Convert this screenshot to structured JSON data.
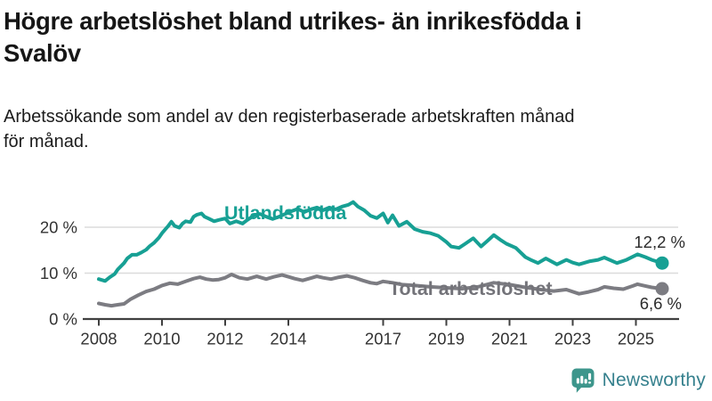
{
  "header": {
    "title": "Högre arbetslöshet bland utrikes- än inrikesfödda i\nSvalöv",
    "subtitle": "Arbetssökande som andel av den registerbaserade arbetskraften månad\nför månad."
  },
  "branding": {
    "name": "Newsworthy",
    "icon": "newsworthy-speech-bubble-bar-chart-icon",
    "icon_color": "#3d968c",
    "text_color": "#35808d"
  },
  "colors": {
    "accent_teal": "#17a094",
    "line_gray": "#7c7c82",
    "grid": "#dbdbdb",
    "axis": "#404040",
    "axis_text": "#333333",
    "value_label_text": "#2b2b2b"
  },
  "chart_data": {
    "type": "line",
    "unit": "%",
    "grid": "horizontal-only",
    "x_axis": {
      "ticks": [
        {
          "v": 2008,
          "label": "2008"
        },
        {
          "v": 2010,
          "label": "2010"
        },
        {
          "v": 2012,
          "label": "2012"
        },
        {
          "v": 2014,
          "label": "2014"
        },
        {
          "v": 2017,
          "label": "2017"
        },
        {
          "v": 2019,
          "label": "2019"
        },
        {
          "v": 2021,
          "label": "2021"
        },
        {
          "v": 2023,
          "label": "2023"
        },
        {
          "v": 2025,
          "label": "2025"
        }
      ],
      "range": [
        2007.5,
        2026.3
      ]
    },
    "y_axis": {
      "ticks": [
        {
          "v": 0,
          "label": "0 %"
        },
        {
          "v": 10,
          "label": "10 %"
        },
        {
          "v": 20,
          "label": "20 %"
        }
      ],
      "range": [
        0,
        26
      ]
    },
    "series": [
      {
        "name": "Utlandsfödda",
        "color": "#17a094",
        "end_value": 12.2,
        "end_label": {
          "text": "12,2 %",
          "x": 770,
          "y": 73
        },
        "label_pos": {
          "x": 252,
          "y": 41
        },
        "x": [
          2008.0,
          2008.2,
          2008.35,
          2008.5,
          2008.6,
          2008.8,
          2008.9,
          2009.05,
          2009.2,
          2009.35,
          2009.5,
          2009.6,
          2009.75,
          2009.9,
          2010.0,
          2010.2,
          2010.3,
          2010.4,
          2010.55,
          2010.65,
          2010.75,
          2010.9,
          2011.0,
          2011.1,
          2011.25,
          2011.35,
          2011.5,
          2011.65,
          2011.8,
          2012.0,
          2012.15,
          2012.35,
          2012.55,
          2012.7,
          2012.9,
          2013.1,
          2013.3,
          2013.5,
          2013.7,
          2013.9,
          2014.1,
          2014.3,
          2014.5,
          2014.7,
          2014.9,
          2015.1,
          2015.3,
          2015.5,
          2015.7,
          2015.9,
          2016.05,
          2016.2,
          2016.4,
          2016.6,
          2016.8,
          2017.0,
          2017.15,
          2017.3,
          2017.5,
          2017.75,
          2018.0,
          2018.25,
          2018.5,
          2018.75,
          2019.0,
          2019.15,
          2019.4,
          2019.6,
          2019.85,
          2020.1,
          2020.3,
          2020.5,
          2020.7,
          2020.9,
          2021.2,
          2021.5,
          2021.7,
          2021.9,
          2022.15,
          2022.5,
          2022.8,
          2023.0,
          2023.2,
          2023.55,
          2023.8,
          2024.0,
          2024.4,
          2024.7,
          2025.05,
          2025.3,
          2025.5,
          2025.83
        ],
        "values": [
          8.7,
          8.3,
          9.1,
          9.8,
          10.8,
          12.2,
          13.2,
          14.0,
          14.0,
          14.5,
          15.1,
          15.8,
          16.6,
          17.7,
          18.7,
          20.3,
          21.2,
          20.3,
          19.9,
          20.8,
          21.3,
          21.1,
          22.3,
          22.7,
          23.0,
          22.3,
          21.8,
          21.3,
          21.6,
          21.9,
          20.8,
          21.3,
          20.8,
          21.6,
          22.5,
          22.9,
          22.3,
          21.8,
          22.3,
          22.9,
          23.5,
          24.0,
          23.3,
          23.9,
          24.3,
          23.7,
          24.3,
          23.9,
          24.5,
          24.9,
          25.5,
          24.5,
          23.7,
          22.5,
          22.0,
          23.0,
          21.0,
          22.6,
          20.3,
          21.2,
          19.6,
          19.0,
          18.7,
          18.1,
          16.8,
          15.8,
          15.5,
          16.4,
          17.6,
          15.8,
          17.0,
          18.3,
          17.3,
          16.4,
          15.5,
          13.5,
          12.8,
          12.2,
          13.2,
          11.9,
          12.9,
          12.3,
          11.9,
          12.6,
          12.9,
          13.4,
          12.2,
          12.9,
          14.1,
          13.5,
          12.9,
          12.2
        ]
      },
      {
        "name": "Total arbetslöshet",
        "color": "#7c7c82",
        "label_color": "#737379",
        "end_value": 6.6,
        "end_label": {
          "text": "6,6 %",
          "x": 766,
          "y": 142
        },
        "label_pos": {
          "x": 437,
          "y": 126
        },
        "x": [
          2008.0,
          2008.2,
          2008.4,
          2008.6,
          2008.8,
          2009.0,
          2009.25,
          2009.5,
          2009.75,
          2010.0,
          2010.25,
          2010.5,
          2010.75,
          2011.0,
          2011.2,
          2011.4,
          2011.6,
          2011.8,
          2012.0,
          2012.2,
          2012.45,
          2012.7,
          2013.0,
          2013.3,
          2013.55,
          2013.8,
          2014.0,
          2014.2,
          2014.45,
          2014.7,
          2014.9,
          2015.1,
          2015.35,
          2015.6,
          2015.85,
          2016.1,
          2016.35,
          2016.6,
          2016.8,
          2017.0,
          2017.3,
          2017.6,
          2018.0,
          2018.5,
          2019.0,
          2019.5,
          2020.0,
          2020.5,
          2021.0,
          2021.5,
          2022.0,
          2022.4,
          2022.8,
          2023.2,
          2023.5,
          2023.8,
          2024.0,
          2024.3,
          2024.6,
          2024.9,
          2025.05,
          2025.3,
          2025.5,
          2025.83
        ],
        "values": [
          3.4,
          3.1,
          2.9,
          3.1,
          3.3,
          4.3,
          5.2,
          6.0,
          6.5,
          7.3,
          7.8,
          7.6,
          8.2,
          8.8,
          9.1,
          8.7,
          8.5,
          8.6,
          9.0,
          9.7,
          9.0,
          8.7,
          9.3,
          8.7,
          9.2,
          9.6,
          9.2,
          8.8,
          8.4,
          8.9,
          9.3,
          9.0,
          8.7,
          9.1,
          9.4,
          9.0,
          8.4,
          7.9,
          7.7,
          8.2,
          7.9,
          7.5,
          7.3,
          7.0,
          6.8,
          6.6,
          7.0,
          7.9,
          7.5,
          6.9,
          6.4,
          6.1,
          6.4,
          5.5,
          5.9,
          6.4,
          7.0,
          6.7,
          6.5,
          7.2,
          7.6,
          7.2,
          6.9,
          6.6
        ]
      }
    ]
  }
}
